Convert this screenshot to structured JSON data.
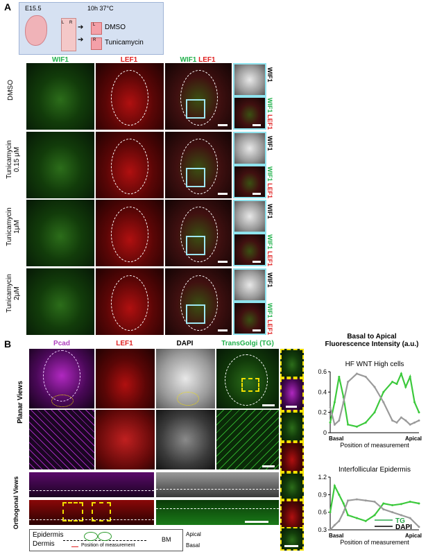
{
  "panelA": {
    "letter": "A",
    "schematic": {
      "age": "E15.5",
      "condition": "10h 37°C",
      "L": "L",
      "R": "R",
      "L2": "L",
      "R2": "R",
      "dmso": "DMSO",
      "tunicamycin": "Tunicamycin"
    },
    "col_headers": {
      "wif1": "WIF1",
      "lef1": "LEF1",
      "merge_wif1": "WIF1",
      "merge_lef1": "LEF1"
    },
    "rows": [
      {
        "line1": "DMSO",
        "line2": ""
      },
      {
        "line1": "Tunicamycin",
        "line2": "0.15 μM"
      },
      {
        "line1": "Tunicamycin",
        "line2": "1μM"
      },
      {
        "line1": "Tunicamycin",
        "line2": "2μM"
      }
    ],
    "inset_labels": {
      "wif1": "WIF1",
      "merge_wif1": "WIF1",
      "merge_lef1": "LEF1"
    }
  },
  "panelB": {
    "letter": "B",
    "col_headers": {
      "pcad": "Pcad",
      "lef1": "LEF1",
      "dapi": "DAPI",
      "tg": "TransGolgi (TG)"
    },
    "row_groups": {
      "planar": "Planar Views",
      "orthogonal": "Orthogonal Views"
    },
    "legend": {
      "epidermis": "Epidermis",
      "dermis": "Dermis",
      "bm": "BM",
      "apical": "Apical",
      "basal": "Basal",
      "position": "Position of measurement"
    }
  },
  "charts_header": {
    "line1": "Basal to Apical",
    "line2": "Fluorescence Intensity (a.u.)"
  },
  "chart_data": [
    {
      "type": "line",
      "title": "HF WNT High cells",
      "xlabel": "Position of measurement",
      "x_tick_labels": [
        "Basal",
        "Apical"
      ],
      "ylim": [
        0,
        0.6
      ],
      "yticks": [
        0,
        0.2,
        0.4,
        0.6
      ],
      "series": [
        {
          "color": "#3cc93c",
          "x": [
            0,
            0.05,
            0.1,
            0.15,
            0.2,
            0.3,
            0.4,
            0.5,
            0.6,
            0.7,
            0.75,
            0.8,
            0.85,
            0.9,
            0.95,
            1
          ],
          "values": [
            0.1,
            0.3,
            0.55,
            0.35,
            0.08,
            0.06,
            0.1,
            0.2,
            0.4,
            0.5,
            0.48,
            0.58,
            0.45,
            0.55,
            0.3,
            0.2
          ]
        },
        {
          "color": "#9a9a9a",
          "x": [
            0,
            0.05,
            0.1,
            0.15,
            0.2,
            0.3,
            0.4,
            0.5,
            0.6,
            0.7,
            0.75,
            0.8,
            0.85,
            0.9,
            0.95,
            1
          ],
          "values": [
            0.25,
            0.08,
            0.12,
            0.3,
            0.5,
            0.58,
            0.55,
            0.45,
            0.3,
            0.12,
            0.1,
            0.15,
            0.12,
            0.08,
            0.1,
            0.12
          ]
        }
      ]
    },
    {
      "type": "line",
      "title": "Interfollicular Epidermis",
      "xlabel": "Position of measurement",
      "x_tick_labels": [
        "Basal",
        "Apical"
      ],
      "ylim": [
        0.3,
        1.2
      ],
      "yticks": [
        0.3,
        0.6,
        0.9,
        1.2
      ],
      "series": [
        {
          "name": "TG",
          "color": "#3cc93c",
          "x": [
            0,
            0.05,
            0.1,
            0.15,
            0.2,
            0.3,
            0.4,
            0.5,
            0.6,
            0.7,
            0.8,
            0.9,
            1
          ],
          "values": [
            0.6,
            1.05,
            0.9,
            0.75,
            0.55,
            0.5,
            0.45,
            0.55,
            0.75,
            0.72,
            0.74,
            0.78,
            0.75
          ]
        },
        {
          "name": "DAPI",
          "color": "#9a9a9a",
          "x": [
            0,
            0.05,
            0.1,
            0.15,
            0.2,
            0.3,
            0.4,
            0.5,
            0.6,
            0.7,
            0.8,
            0.9,
            1
          ],
          "values": [
            0.3,
            0.38,
            0.45,
            0.6,
            0.8,
            0.82,
            0.8,
            0.78,
            0.65,
            0.6,
            0.55,
            0.5,
            0.35
          ]
        }
      ]
    }
  ]
}
